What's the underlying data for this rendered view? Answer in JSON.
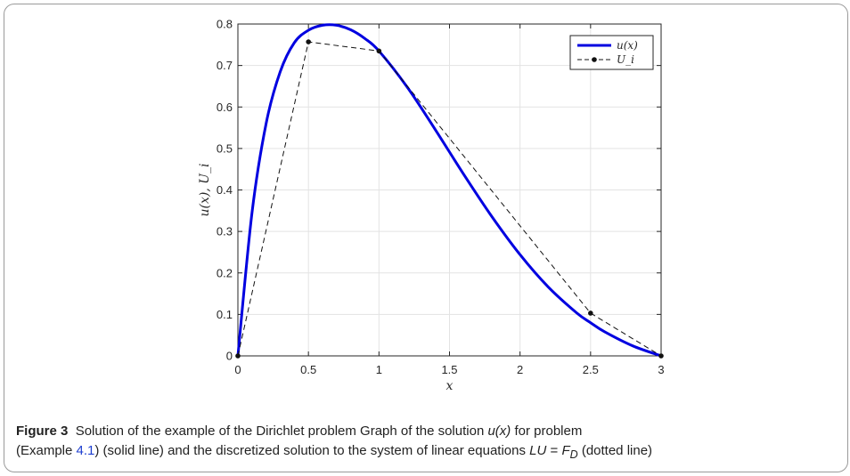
{
  "chart_data": {
    "type": "line",
    "xlabel": "x",
    "ylabel": "u(x), U_i",
    "xlim": [
      0,
      3
    ],
    "ylim": [
      0,
      0.8
    ],
    "xticks": [
      0,
      0.5,
      1,
      1.5,
      2,
      2.5,
      3
    ],
    "xtick_labels": [
      "0",
      "0.5",
      "1",
      "1.5",
      "2",
      "2.5",
      "3"
    ],
    "yticks": [
      0,
      0.1,
      0.2,
      0.3,
      0.4,
      0.5,
      0.6,
      0.7,
      0.8
    ],
    "ytick_labels": [
      "0",
      "0.1",
      "0.2",
      "0.3",
      "0.4",
      "0.5",
      "0.6",
      "0.7",
      "0.8"
    ],
    "grid": true,
    "legend_position": "top-right",
    "series": [
      {
        "name": "u(x)",
        "style": "solid",
        "color": "#0000e0",
        "x": [
          0,
          0.1,
          0.2,
          0.3,
          0.4,
          0.5,
          0.6,
          0.7,
          0.8,
          0.9,
          1.0,
          1.2,
          1.4,
          1.6,
          1.8,
          2.0,
          2.2,
          2.4,
          2.5,
          2.6,
          2.8,
          3.0
        ],
        "y": [
          0,
          0.345,
          0.56,
          0.685,
          0.755,
          0.785,
          0.797,
          0.797,
          0.786,
          0.765,
          0.735,
          0.648,
          0.545,
          0.438,
          0.336,
          0.244,
          0.166,
          0.104,
          0.08,
          0.058,
          0.024,
          0
        ]
      },
      {
        "name": "U_i",
        "style": "dashed",
        "color": "#111111",
        "marker": "circle",
        "x": [
          0,
          0.5,
          1.0,
          2.5,
          3.0
        ],
        "y": [
          0,
          0.757,
          0.735,
          0.103,
          0
        ]
      }
    ]
  },
  "caption": {
    "label": "Figure 3",
    "text_1": "Solution of the example of the Dirichlet problem Graph of the solution ",
    "ux": "u(x)",
    "text_2": " for problem",
    "text_3": "(Example ",
    "ref": "4.1",
    "text_4": ") (solid line) and the discretized solution to the system of linear equations ",
    "eq_lhs": "LU",
    "eq_sign": " = ",
    "eq_f": "F",
    "eq_sub": "D",
    "text_5": " (dotted line)"
  }
}
